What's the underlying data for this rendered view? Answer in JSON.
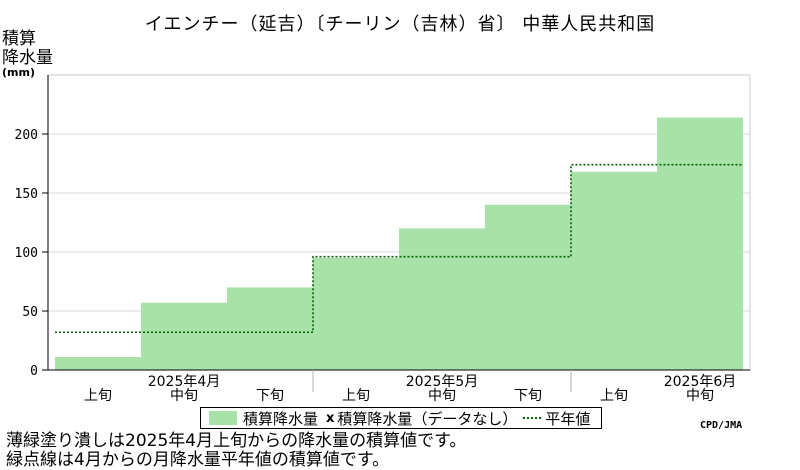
{
  "header": {
    "title": "イエンチー（延吉）〔チーリン（吉林）省〕 中華人民共和国"
  },
  "chart_data": {
    "type": "bar",
    "ylabel_lines": [
      "積算",
      "降水量"
    ],
    "yunit": "(mm)",
    "ylim": [
      0,
      250
    ],
    "yticks": [
      0,
      50,
      100,
      150,
      200
    ],
    "grid": true,
    "categories": [
      "上旬",
      "中旬",
      "下旬",
      "上旬",
      "中旬",
      "下旬",
      "上旬",
      "中旬"
    ],
    "months": [
      "2025年4月",
      "2025年5月",
      "2025年6月"
    ],
    "series": [
      {
        "name": "積算降水量",
        "color": "#a8e2a8",
        "values": [
          11,
          57,
          70,
          95,
          120,
          140,
          168,
          214
        ]
      },
      {
        "name": "平年値",
        "color": "#006400",
        "values": [
          32,
          32,
          32,
          96,
          96,
          96,
          174,
          174
        ]
      }
    ],
    "legend_placement": "bottom"
  },
  "legend": {
    "fill_label": "積算降水量",
    "marker_symbol": "x",
    "marker_label": "積算降水量（データなし）",
    "line_label": "平年値"
  },
  "credit": "CPD/JMA",
  "notes": [
    "薄緑塗り潰しは2025年4月上旬からの降水量の積算値です。",
    "緑点線は4月からの月降水量平年値の積算値です。"
  ]
}
